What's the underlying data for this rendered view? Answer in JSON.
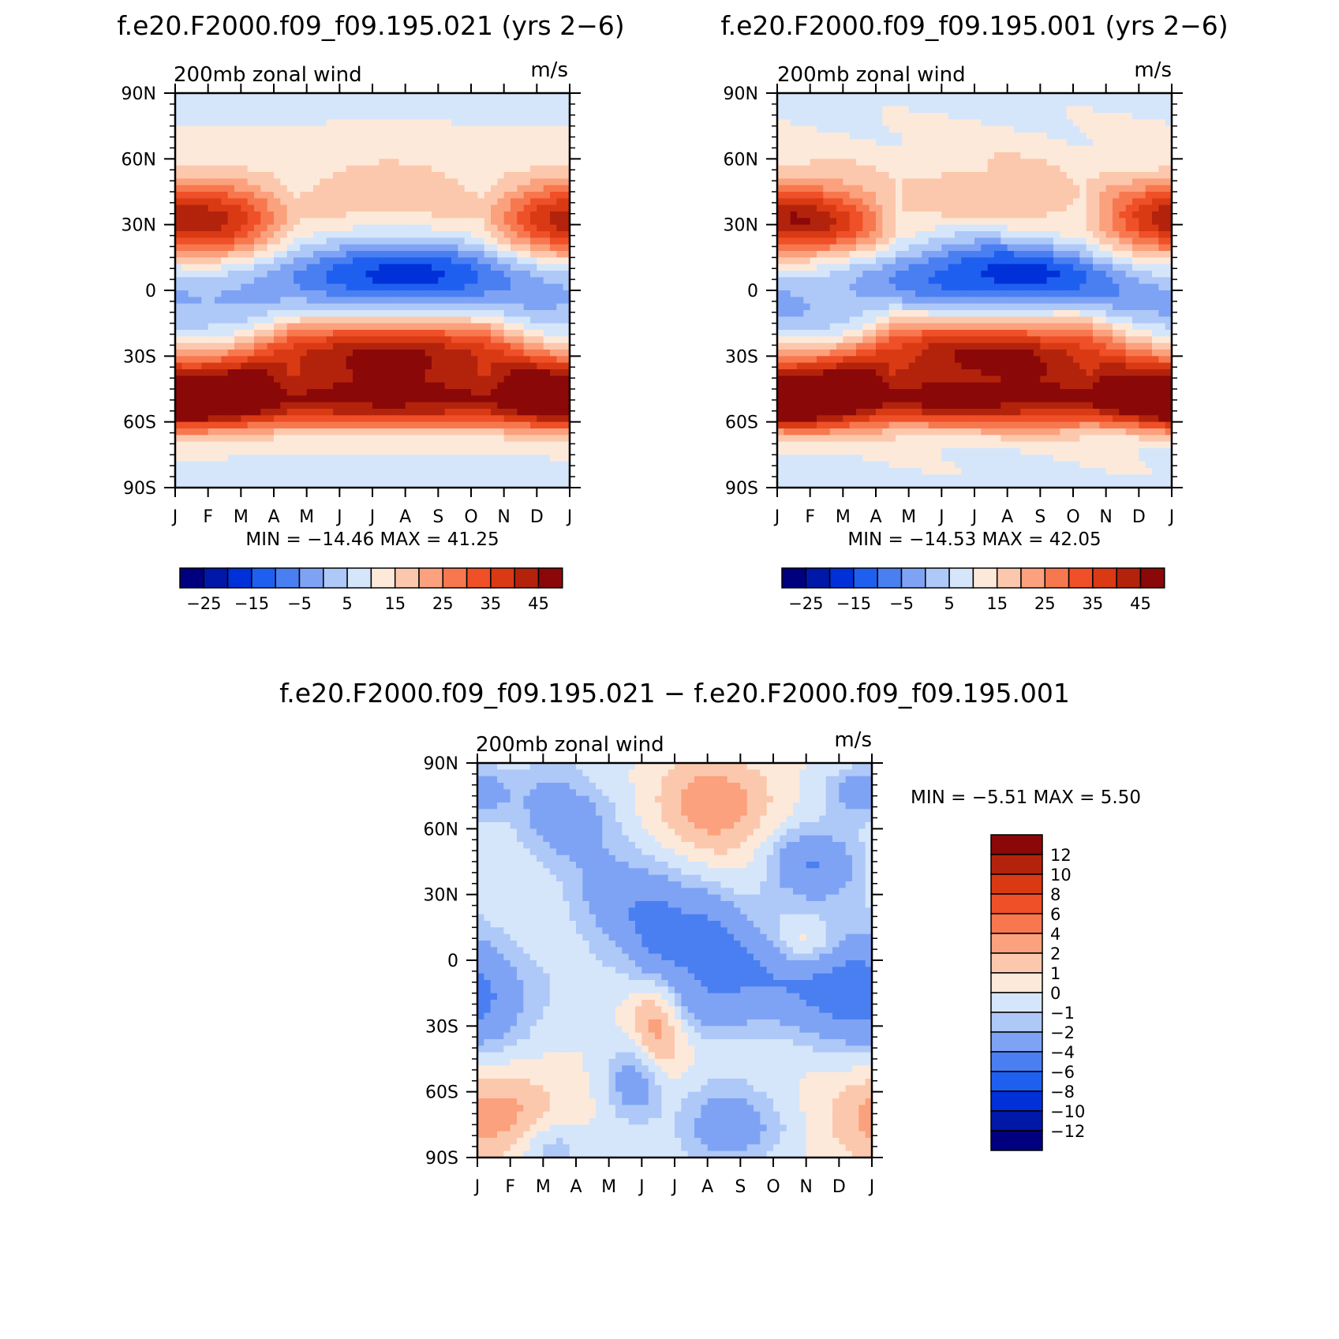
{
  "chart_data": [
    {
      "type": "heatmap",
      "title": "f.e20.F2000.f09_f09.195.021 (yrs 2−6)",
      "left_label": "200mb  zonal  wind",
      "units": "m/s",
      "x_ticks": [
        "J",
        "F",
        "M",
        "A",
        "M",
        "J",
        "J",
        "A",
        "S",
        "O",
        "N",
        "D",
        "J"
      ],
      "y_ticks": [
        "90N",
        "60N",
        "30N",
        "0",
        "30S",
        "60S",
        "90S"
      ],
      "min_max_text": "MIN  =  −14.46  MAX  =    41.25",
      "colorbar": {
        "orientation": "horizontal",
        "levels": [
          -30,
          -25,
          -20,
          -15,
          -10,
          -5,
          0,
          5,
          10,
          15,
          20,
          25,
          30,
          35,
          40,
          45
        ],
        "labels": [
          "−25",
          "−15",
          "−5",
          "5",
          "15",
          "25",
          "35",
          "45"
        ],
        "colors": [
          "#00007f",
          "#0018a8",
          "#0030d8",
          "#1f5ff0",
          "#4a7ff2",
          "#7fa3f4",
          "#aec8f8",
          "#d5e6fb",
          "#fde9d9",
          "#fcc8ad",
          "#fba17d",
          "#f7784f",
          "#ef5028",
          "#d93a14",
          "#b3230c",
          "#8b0808"
        ]
      },
      "field": "jet_a"
    },
    {
      "type": "heatmap",
      "title": "f.e20.F2000.f09_f09.195.001 (yrs 2−6)",
      "left_label": "200mb  zonal  wind",
      "units": "m/s",
      "x_ticks": [
        "J",
        "F",
        "M",
        "A",
        "M",
        "J",
        "J",
        "A",
        "S",
        "O",
        "N",
        "D",
        "J"
      ],
      "y_ticks": [
        "90N",
        "60N",
        "30N",
        "0",
        "30S",
        "60S",
        "90S"
      ],
      "min_max_text": "MIN  =  −14.53  MAX  =    42.05",
      "colorbar": {
        "orientation": "horizontal",
        "levels": [
          -30,
          -25,
          -20,
          -15,
          -10,
          -5,
          0,
          5,
          10,
          15,
          20,
          25,
          30,
          35,
          40,
          45
        ],
        "labels": [
          "−25",
          "−15",
          "−5",
          "5",
          "15",
          "25",
          "35",
          "45"
        ],
        "colors": [
          "#00007f",
          "#0018a8",
          "#0030d8",
          "#1f5ff0",
          "#4a7ff2",
          "#7fa3f4",
          "#aec8f8",
          "#d5e6fb",
          "#fde9d9",
          "#fcc8ad",
          "#fba17d",
          "#f7784f",
          "#ef5028",
          "#d93a14",
          "#b3230c",
          "#8b0808"
        ]
      },
      "field": "jet_b"
    },
    {
      "type": "heatmap",
      "title": "f.e20.F2000.f09_f09.195.021 − f.e20.F2000.f09_f09.195.001",
      "left_label": "200mb  zonal  wind",
      "units": "m/s",
      "x_ticks": [
        "J",
        "F",
        "M",
        "A",
        "M",
        "J",
        "J",
        "A",
        "S",
        "O",
        "N",
        "D",
        "J"
      ],
      "y_ticks": [
        "90N",
        "60N",
        "30N",
        "0",
        "30S",
        "60S",
        "90S"
      ],
      "min_max_text": "MIN  =    −5.51  MAX  =      5.50",
      "colorbar": {
        "orientation": "vertical",
        "labels": [
          "12",
          "10",
          "8",
          "6",
          "4",
          "2",
          "1",
          "0",
          "−1",
          "−2",
          "−4",
          "−6",
          "−8",
          "−10",
          "−12"
        ],
        "colors": [
          "#8b0808",
          "#b3230c",
          "#d93a14",
          "#ef5028",
          "#f7784f",
          "#fba17d",
          "#fcc8ad",
          "#fde9d9",
          "#d5e6fb",
          "#aec8f8",
          "#7fa3f4",
          "#4a7ff2",
          "#1f5ff0",
          "#0030d8",
          "#0018a8",
          "#00007f"
        ]
      },
      "field": "diff"
    }
  ]
}
